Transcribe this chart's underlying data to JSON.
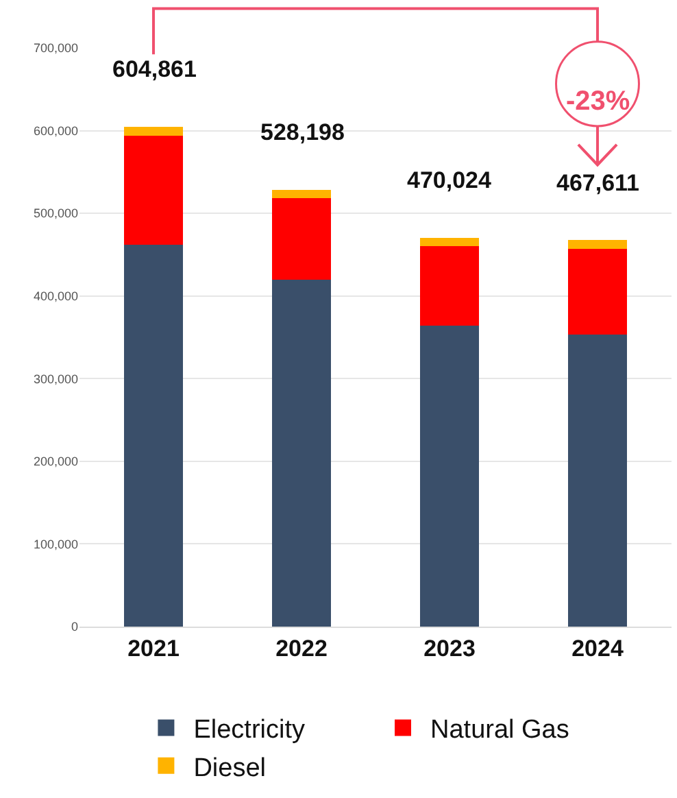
{
  "chart_data": {
    "type": "bar",
    "stacked": true,
    "categories": [
      "2021",
      "2022",
      "2023",
      "2024"
    ],
    "series": [
      {
        "name": "Electricity",
        "color": "#3a4f6a",
        "values": [
          462000,
          420000,
          364000,
          353000
        ]
      },
      {
        "name": "Natural Gas",
        "color": "#ff0000",
        "values": [
          132000,
          98000,
          96000,
          104000
        ]
      },
      {
        "name": "Diesel",
        "color": "#ffb300",
        "values": [
          10861,
          10198,
          10024,
          10611
        ]
      }
    ],
    "totals": [
      "604,861",
      "528,198",
      "470,024",
      "467,611"
    ],
    "annotations": [
      "-23%"
    ],
    "ylim": [
      0,
      700000
    ],
    "yticks": [
      {
        "value": 0,
        "label": "0"
      },
      {
        "value": 100000,
        "label": "100,000"
      },
      {
        "value": 200000,
        "label": "200,000"
      },
      {
        "value": 300000,
        "label": "300,000"
      },
      {
        "value": 400000,
        "label": "400,000"
      },
      {
        "value": 500000,
        "label": "500,000"
      },
      {
        "value": 600000,
        "label": "600,000"
      },
      {
        "value": 700000,
        "label": "700,000"
      }
    ],
    "grid": "y",
    "legend": "bottom"
  }
}
